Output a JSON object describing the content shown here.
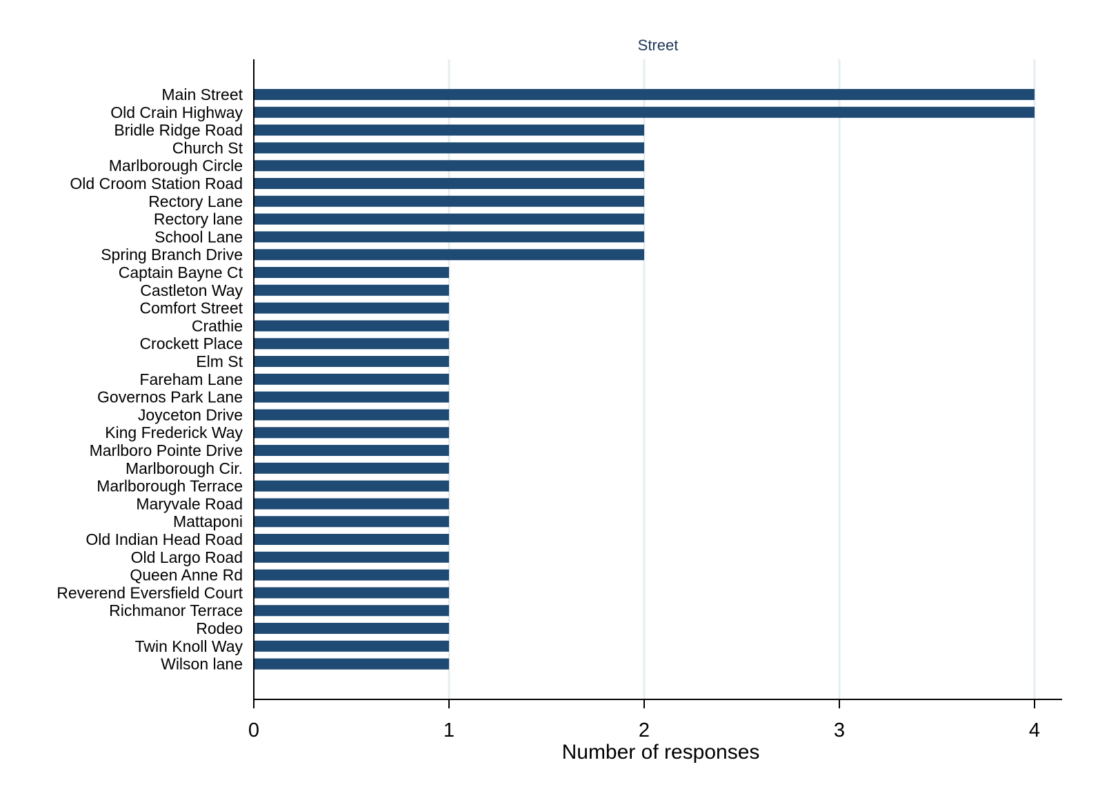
{
  "chart_data": {
    "type": "bar",
    "orientation": "horizontal",
    "title": "Street",
    "xlabel": "Number of responses",
    "ylabel": "",
    "xlim": [
      0,
      4
    ],
    "xticks": [
      "0",
      "1",
      "2",
      "3",
      "4"
    ],
    "grid": true,
    "legend": "none",
    "categories": [
      "Main Street",
      "Old Crain Highway",
      "Bridle Ridge Road",
      "Church St",
      "Marlborough Circle",
      "Old Croom Station Road",
      "Rectory Lane",
      "Rectory lane",
      "School Lane",
      "Spring Branch Drive",
      "Captain Bayne Ct",
      "Castleton Way",
      "Comfort Street",
      "Crathie",
      "Crockett Place",
      "Elm St",
      "Fareham Lane",
      "Governos Park Lane",
      "Joyceton Drive",
      "King Frederick Way",
      "Marlboro Pointe Drive",
      "Marlborough Cir.",
      "Marlborough Terrace",
      "Maryvale Road",
      "Mattaponi",
      "Old Indian Head Road",
      "Old Largo Road",
      "Queen Anne Rd",
      "Reverend Eversfield Court",
      "Richmanor Terrace",
      "Rodeo",
      "Twin Knoll Way",
      "Wilson lane"
    ],
    "values": [
      4,
      4,
      2,
      2,
      2,
      2,
      2,
      2,
      2,
      2,
      1,
      1,
      1,
      1,
      1,
      1,
      1,
      1,
      1,
      1,
      1,
      1,
      1,
      1,
      1,
      1,
      1,
      1,
      1,
      1,
      1,
      1,
      1
    ],
    "colors": {
      "bar": "#1f4a73",
      "grid": "#e4edf0",
      "axis": "#000000",
      "title": "#1e3556"
    }
  }
}
